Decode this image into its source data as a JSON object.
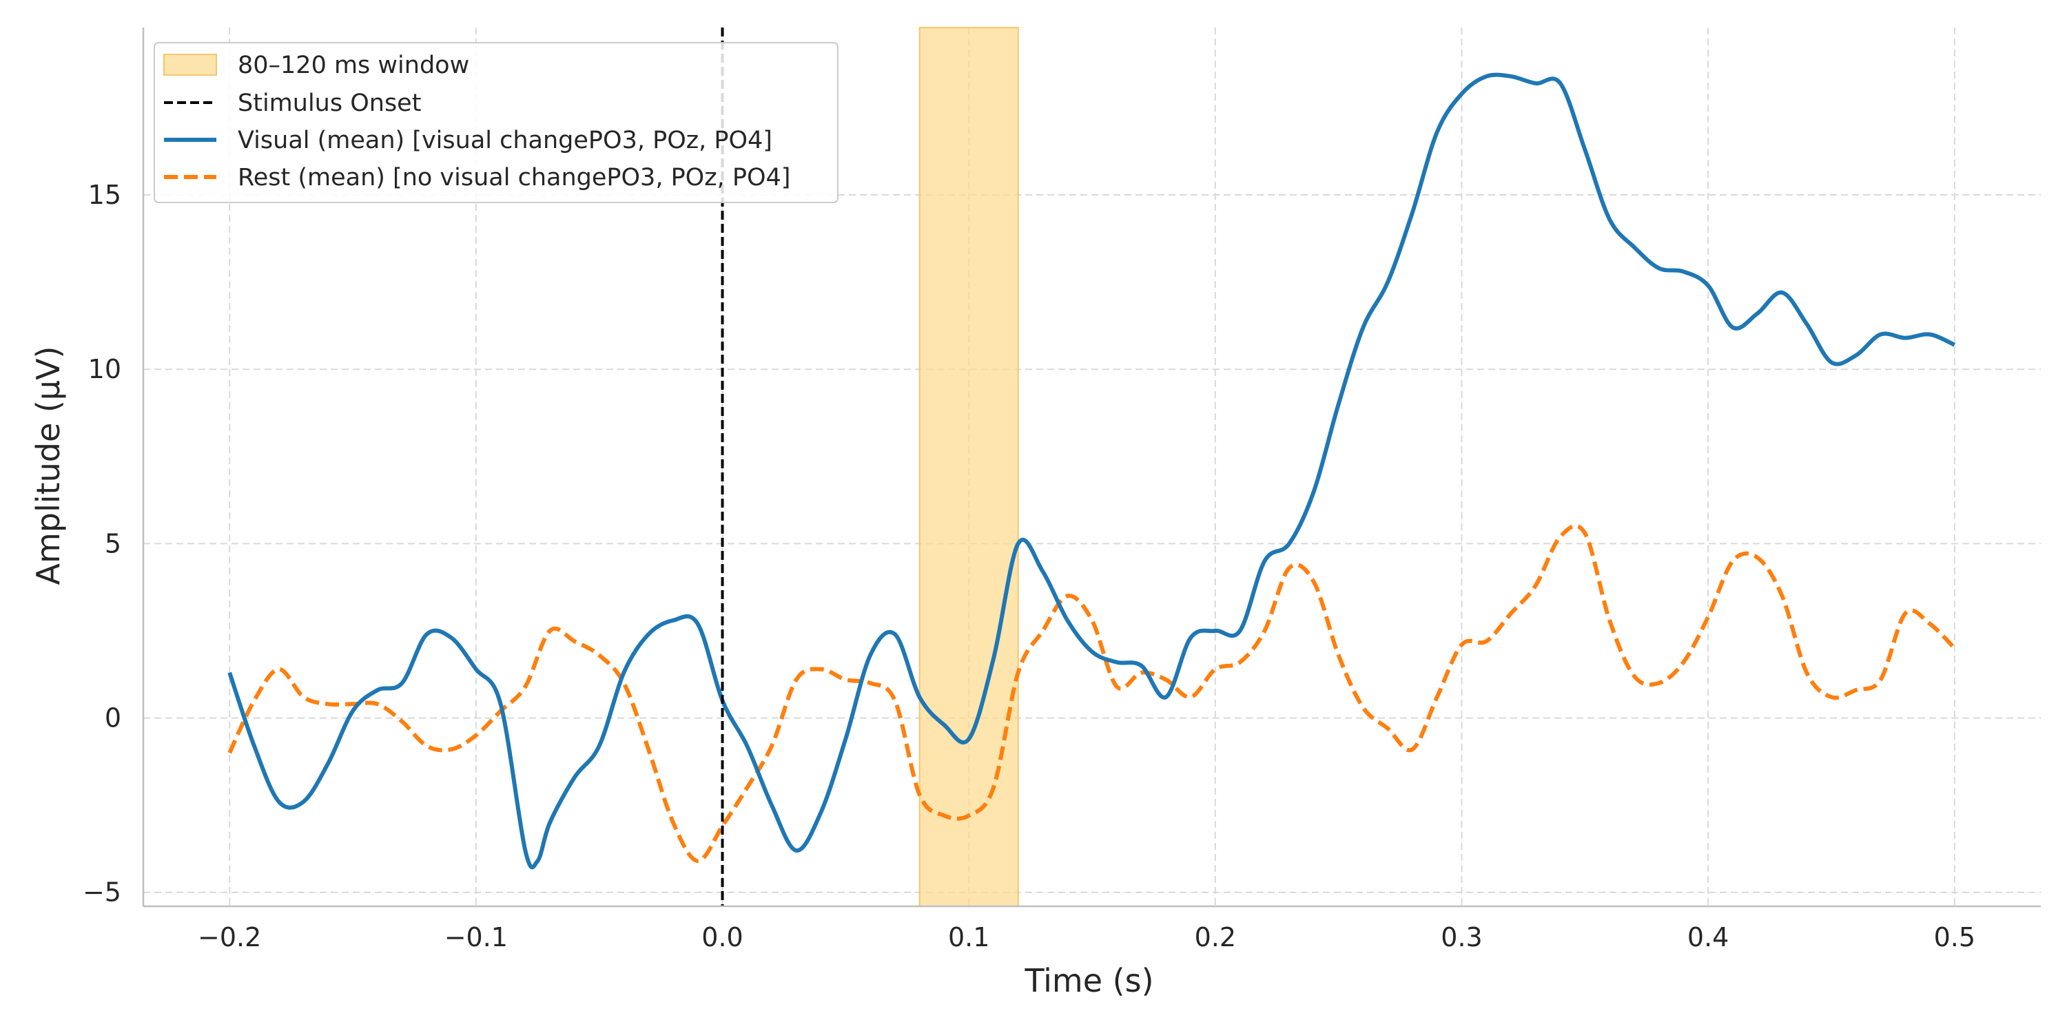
{
  "chart_data": {
    "type": "line",
    "title": "",
    "xlabel": "Time (s)",
    "ylabel": "Amplitude (µV)",
    "xlim": [
      -0.235,
      0.535
    ],
    "ylim": [
      -5.4,
      19.8
    ],
    "xticks": [
      -0.2,
      -0.1,
      0.0,
      0.1,
      0.2,
      0.3,
      0.4,
      0.5
    ],
    "xtick_labels": [
      "−0.2",
      "−0.1",
      "0.0",
      "0.1",
      "0.2",
      "0.3",
      "0.4",
      "0.5"
    ],
    "yticks": [
      -5,
      0,
      5,
      10,
      15
    ],
    "ytick_labels": [
      "−5",
      "0",
      "5",
      "10",
      "15"
    ],
    "grid": true,
    "legend_position": "top-left",
    "window": {
      "label": "80–120 ms window",
      "x0": 0.08,
      "x1": 0.12,
      "color": "#fdd98a"
    },
    "onset": {
      "label": "Stimulus Onset",
      "x": 0.0,
      "color": "#000000"
    },
    "series": [
      {
        "name": "Visual (mean) [visual changePO3, POz, PO4]",
        "color": "#1f77b4",
        "style": "solid",
        "points": [
          [
            -0.2,
            1.3
          ],
          [
            -0.19,
            -0.8
          ],
          [
            -0.18,
            -2.4
          ],
          [
            -0.17,
            -2.4
          ],
          [
            -0.16,
            -1.3
          ],
          [
            -0.15,
            0.2
          ],
          [
            -0.14,
            0.8
          ],
          [
            -0.13,
            1.0
          ],
          [
            -0.12,
            2.4
          ],
          [
            -0.11,
            2.3
          ],
          [
            -0.1,
            1.4
          ],
          [
            -0.09,
            0.4
          ],
          [
            -0.08,
            -3.8
          ],
          [
            -0.075,
            -4.1
          ],
          [
            -0.07,
            -3.0
          ],
          [
            -0.06,
            -1.7
          ],
          [
            -0.05,
            -0.8
          ],
          [
            -0.04,
            1.3
          ],
          [
            -0.03,
            2.4
          ],
          [
            -0.02,
            2.8
          ],
          [
            -0.01,
            2.7
          ],
          [
            0.0,
            0.5
          ],
          [
            0.01,
            -0.8
          ],
          [
            0.02,
            -2.5
          ],
          [
            0.03,
            -3.8
          ],
          [
            0.04,
            -2.7
          ],
          [
            0.05,
            -0.6
          ],
          [
            0.06,
            1.8
          ],
          [
            0.07,
            2.4
          ],
          [
            0.08,
            0.6
          ],
          [
            0.09,
            -0.2
          ],
          [
            0.1,
            -0.6
          ],
          [
            0.11,
            1.7
          ],
          [
            0.12,
            5.0
          ],
          [
            0.13,
            4.2
          ],
          [
            0.14,
            2.8
          ],
          [
            0.15,
            1.9
          ],
          [
            0.16,
            1.6
          ],
          [
            0.17,
            1.5
          ],
          [
            0.18,
            0.6
          ],
          [
            0.19,
            2.3
          ],
          [
            0.2,
            2.5
          ],
          [
            0.21,
            2.5
          ],
          [
            0.22,
            4.5
          ],
          [
            0.23,
            5.0
          ],
          [
            0.24,
            6.5
          ],
          [
            0.25,
            9.0
          ],
          [
            0.26,
            11.2
          ],
          [
            0.27,
            12.5
          ],
          [
            0.28,
            14.5
          ],
          [
            0.29,
            16.8
          ],
          [
            0.3,
            17.9
          ],
          [
            0.31,
            18.4
          ],
          [
            0.32,
            18.4
          ],
          [
            0.33,
            18.2
          ],
          [
            0.34,
            18.2
          ],
          [
            0.35,
            16.3
          ],
          [
            0.36,
            14.3
          ],
          [
            0.37,
            13.5
          ],
          [
            0.38,
            12.9
          ],
          [
            0.39,
            12.8
          ],
          [
            0.4,
            12.4
          ],
          [
            0.41,
            11.2
          ],
          [
            0.42,
            11.6
          ],
          [
            0.43,
            12.2
          ],
          [
            0.44,
            11.3
          ],
          [
            0.45,
            10.2
          ],
          [
            0.46,
            10.4
          ],
          [
            0.47,
            11.0
          ],
          [
            0.48,
            10.9
          ],
          [
            0.49,
            11.0
          ],
          [
            0.5,
            10.7
          ]
        ]
      },
      {
        "name": "Rest (mean) [no visual changePO3, POz, PO4]",
        "color": "#ff7f0e",
        "style": "dashed",
        "points": [
          [
            -0.2,
            -1.0
          ],
          [
            -0.19,
            0.5
          ],
          [
            -0.18,
            1.4
          ],
          [
            -0.17,
            0.6
          ],
          [
            -0.16,
            0.4
          ],
          [
            -0.15,
            0.4
          ],
          [
            -0.14,
            0.4
          ],
          [
            -0.13,
            -0.1
          ],
          [
            -0.12,
            -0.8
          ],
          [
            -0.11,
            -0.9
          ],
          [
            -0.1,
            -0.5
          ],
          [
            -0.09,
            0.2
          ],
          [
            -0.08,
            0.9
          ],
          [
            -0.07,
            2.5
          ],
          [
            -0.06,
            2.2
          ],
          [
            -0.05,
            1.8
          ],
          [
            -0.04,
            1.0
          ],
          [
            -0.03,
            -0.9
          ],
          [
            -0.02,
            -3.0
          ],
          [
            -0.01,
            -4.1
          ],
          [
            0.0,
            -3.1
          ],
          [
            0.01,
            -2.0
          ],
          [
            0.02,
            -0.8
          ],
          [
            0.03,
            1.1
          ],
          [
            0.04,
            1.4
          ],
          [
            0.05,
            1.1
          ],
          [
            0.06,
            1.0
          ],
          [
            0.07,
            0.5
          ],
          [
            0.08,
            -2.2
          ],
          [
            0.09,
            -2.8
          ],
          [
            0.1,
            -2.8
          ],
          [
            0.11,
            -2.0
          ],
          [
            0.12,
            1.3
          ],
          [
            0.13,
            2.5
          ],
          [
            0.14,
            3.5
          ],
          [
            0.15,
            2.8
          ],
          [
            0.16,
            0.9
          ],
          [
            0.17,
            1.3
          ],
          [
            0.18,
            1.1
          ],
          [
            0.19,
            0.6
          ],
          [
            0.2,
            1.4
          ],
          [
            0.21,
            1.6
          ],
          [
            0.22,
            2.5
          ],
          [
            0.23,
            4.3
          ],
          [
            0.24,
            3.9
          ],
          [
            0.25,
            1.8
          ],
          [
            0.26,
            0.3
          ],
          [
            0.27,
            -0.3
          ],
          [
            0.28,
            -0.9
          ],
          [
            0.29,
            0.6
          ],
          [
            0.3,
            2.1
          ],
          [
            0.31,
            2.2
          ],
          [
            0.32,
            3.0
          ],
          [
            0.33,
            3.8
          ],
          [
            0.34,
            5.2
          ],
          [
            0.35,
            5.3
          ],
          [
            0.36,
            2.8
          ],
          [
            0.37,
            1.2
          ],
          [
            0.38,
            1.0
          ],
          [
            0.39,
            1.6
          ],
          [
            0.4,
            2.9
          ],
          [
            0.41,
            4.5
          ],
          [
            0.42,
            4.6
          ],
          [
            0.43,
            3.5
          ],
          [
            0.44,
            1.3
          ],
          [
            0.45,
            0.6
          ],
          [
            0.46,
            0.8
          ],
          [
            0.47,
            1.1
          ],
          [
            0.48,
            3.0
          ],
          [
            0.49,
            2.7
          ],
          [
            0.5,
            2.0
          ]
        ]
      }
    ]
  }
}
